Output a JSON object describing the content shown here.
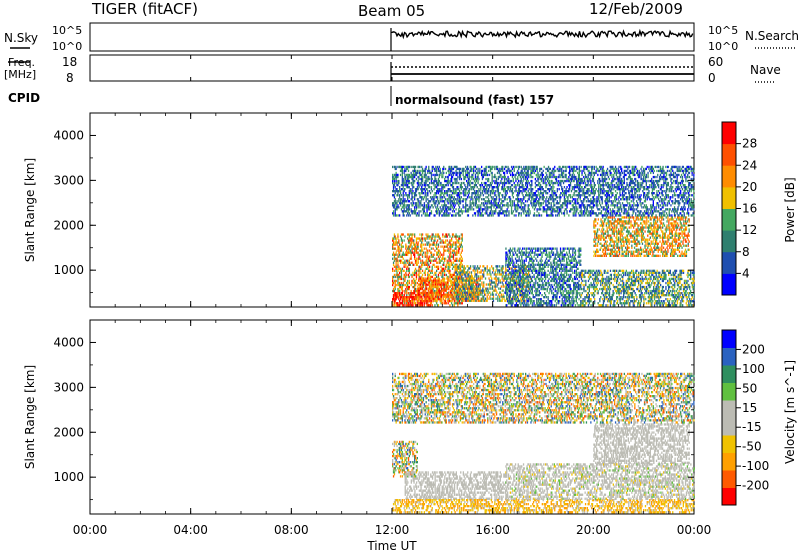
{
  "header": {
    "radar": "TIGER (fitACF)",
    "beam": "Beam 05",
    "date": "12/Feb/2009"
  },
  "top_panels": {
    "nsky": {
      "label": "N.Sky",
      "ticks": [
        "10^5",
        "10^0"
      ]
    },
    "nsearch": {
      "label": "N.Search",
      "ticks": [
        "10^5",
        "10^0"
      ]
    },
    "freq": {
      "label_line1": "Freq.",
      "label_line2": "[MHz]",
      "ticks": [
        "18",
        "8"
      ]
    },
    "nave": {
      "label": "Nave",
      "ticks": [
        "60",
        "0"
      ]
    },
    "cpid": {
      "label": "CPID",
      "text": "normalsound (fast) 157"
    }
  },
  "time_axis": {
    "label": "Time UT",
    "ticks": [
      "00:00",
      "04:00",
      "08:00",
      "12:00",
      "16:00",
      "20:00",
      "00:00"
    ],
    "range_hours": [
      0,
      24
    ],
    "data_start_hour": 12
  },
  "colors": {
    "power_scale": [
      "#0000ff",
      "#1f4fb0",
      "#2f7f6f",
      "#44a860",
      "#f0c000",
      "#ff8c00",
      "#ff5000",
      "#ff0000"
    ],
    "velocity_scale": [
      "#ff0000",
      "#ff5a00",
      "#ffa000",
      "#f0c200",
      "#bcbcb4",
      "#bcbcb4",
      "#60c040",
      "#2f8f5f",
      "#2a62c0",
      "#0000ff"
    ],
    "gs_gray": "#bcbcb4"
  },
  "chart_data": [
    {
      "type": "heatmap",
      "title": "",
      "xlabel": "",
      "ylabel": "Slant Range [km]",
      "x_range_hours": [
        0,
        24
      ],
      "ylim": [
        180,
        4500
      ],
      "y_ticks": [
        "4000",
        "3000",
        "2000",
        "1000"
      ],
      "colorbar": {
        "label": "Power [dB]",
        "ticks": [
          "28",
          "24",
          "20",
          "16",
          "12",
          "8",
          "4"
        ],
        "range": [
          0,
          32
        ]
      },
      "regions": [
        {
          "t_start": 12.0,
          "t_end": 14.8,
          "r_min": 200,
          "r_max": 1800,
          "value_range": [
            10,
            30
          ]
        },
        {
          "t_start": 12.0,
          "t_end": 13.5,
          "r_min": 200,
          "r_max": 500,
          "value_range": [
            26,
            32
          ]
        },
        {
          "t_start": 13.0,
          "t_end": 15.5,
          "r_min": 300,
          "r_max": 800,
          "value_range": [
            18,
            30
          ]
        },
        {
          "t_start": 14.5,
          "t_end": 17.5,
          "r_min": 300,
          "r_max": 1100,
          "value_range": [
            4,
            24
          ]
        },
        {
          "t_start": 16.5,
          "t_end": 19.5,
          "r_min": 200,
          "r_max": 1500,
          "value_range": [
            2,
            16
          ]
        },
        {
          "t_start": 19.5,
          "t_end": 24.0,
          "r_min": 200,
          "r_max": 1000,
          "value_range": [
            4,
            20
          ]
        },
        {
          "t_start": 20.0,
          "t_end": 23.8,
          "r_min": 1300,
          "r_max": 2200,
          "value_range": [
            10,
            28
          ]
        },
        {
          "t_start": 12.0,
          "t_end": 24.0,
          "r_min": 2200,
          "r_max": 3300,
          "value_range": [
            2,
            14
          ]
        }
      ]
    },
    {
      "type": "heatmap",
      "title": "",
      "xlabel": "Time UT",
      "ylabel": "Slant Range [km]",
      "x_range_hours": [
        0,
        24
      ],
      "ylim": [
        180,
        4500
      ],
      "y_ticks": [
        "4000",
        "3000",
        "2000",
        "1000"
      ],
      "colorbar": {
        "label": "Velocity [m s^-1]",
        "ticks": [
          "200",
          "100",
          "50",
          "15",
          "-15",
          "-50",
          "-100",
          "-200"
        ],
        "range": [
          -250,
          250
        ]
      },
      "regions": [
        {
          "t_start": 12.0,
          "t_end": 13.0,
          "r_min": 1000,
          "r_max": 1800,
          "value_range": [
            -200,
            200
          ]
        },
        {
          "t_start": 12.5,
          "t_end": 16.5,
          "r_min": 500,
          "r_max": 1100,
          "value_range": [
            -15,
            15
          ]
        },
        {
          "t_start": 12.0,
          "t_end": 24.0,
          "r_min": 200,
          "r_max": 500,
          "value_range": [
            -150,
            -20
          ]
        },
        {
          "t_start": 20.0,
          "t_end": 23.8,
          "r_min": 1300,
          "r_max": 2200,
          "value_range": [
            -15,
            15
          ]
        },
        {
          "t_start": 16.5,
          "t_end": 24.0,
          "r_min": 500,
          "r_max": 1300,
          "value_range": [
            -60,
            60
          ]
        },
        {
          "t_start": 12.0,
          "t_end": 24.0,
          "r_min": 2200,
          "r_max": 3300,
          "value_range": [
            -200,
            200
          ]
        }
      ]
    }
  ]
}
